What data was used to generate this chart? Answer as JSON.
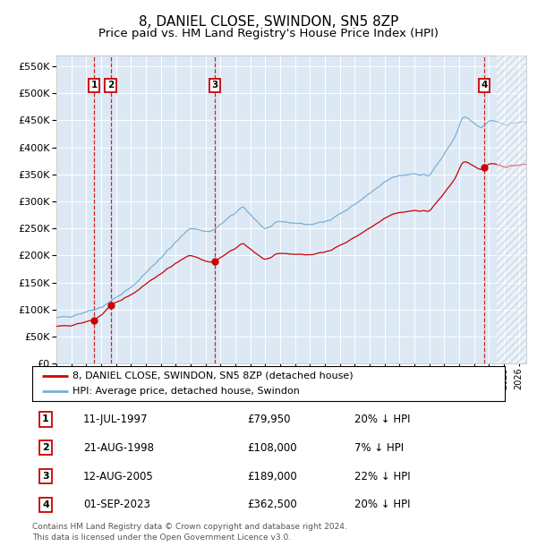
{
  "title": "8, DANIEL CLOSE, SWINDON, SN5 8ZP",
  "subtitle": "Price paid vs. HM Land Registry's House Price Index (HPI)",
  "title_fontsize": 11,
  "subtitle_fontsize": 9.5,
  "ylim": [
    0,
    570000
  ],
  "yticks": [
    0,
    50000,
    100000,
    150000,
    200000,
    250000,
    300000,
    350000,
    400000,
    450000,
    500000,
    550000
  ],
  "xlim_start": 1995.0,
  "xlim_end": 2026.5,
  "plot_bg_color": "#dce9f5",
  "hatch_color": "#aabbcc",
  "grid_color": "#ffffff",
  "red_line_color": "#cc0000",
  "blue_line_color": "#7bafd4",
  "dashed_line_color": "#cc0000",
  "purchases": [
    {
      "label": "1",
      "date_num": 1997.53,
      "price": 79950
    },
    {
      "label": "2",
      "date_num": 1998.64,
      "price": 108000
    },
    {
      "label": "3",
      "date_num": 2005.61,
      "price": 189000
    },
    {
      "label": "4",
      "date_num": 2023.67,
      "price": 362500
    }
  ],
  "legend_red": "8, DANIEL CLOSE, SWINDON, SN5 8ZP (detached house)",
  "legend_blue": "HPI: Average price, detached house, Swindon",
  "table_rows": [
    {
      "num": "1",
      "date": "11-JUL-1997",
      "price": "£79,950",
      "hpi": "20% ↓ HPI"
    },
    {
      "num": "2",
      "date": "21-AUG-1998",
      "price": "£108,000",
      "hpi": "7% ↓ HPI"
    },
    {
      "num": "3",
      "date": "12-AUG-2005",
      "price": "£189,000",
      "hpi": "22% ↓ HPI"
    },
    {
      "num": "4",
      "date": "01-SEP-2023",
      "price": "£362,500",
      "hpi": "20% ↓ HPI"
    }
  ],
  "footer": "Contains HM Land Registry data © Crown copyright and database right 2024.\nThis data is licensed under the Open Government Licence v3.0.",
  "hatch_start": 2024.5
}
